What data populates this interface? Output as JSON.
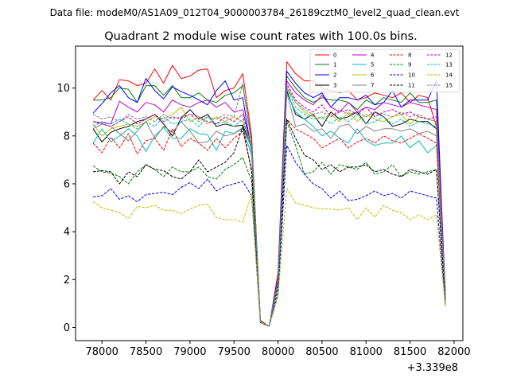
{
  "chart_data": {
    "type": "line",
    "suptitle": "Data file: modeM0/AS1A09_012T04_9000003784_26189cztM0_level2_quad_clean.evt",
    "title": "Quadrant 2 module wise count rates with 100.0s bins.",
    "xlabel": "",
    "ylabel": "",
    "x_offset_label": "+3.339e8",
    "xlim": [
      77700,
      82100
    ],
    "ylim": [
      -0.55,
      11.75
    ],
    "xticks": [
      78000,
      78500,
      79000,
      79500,
      80000,
      80500,
      81000,
      81500,
      82000
    ],
    "xtick_labels": [
      "78000",
      "78500",
      "79000",
      "79500",
      "80000",
      "80500",
      "81000",
      "81500",
      "82000"
    ],
    "yticks": [
      0,
      2,
      4,
      6,
      8,
      10
    ],
    "ytick_labels": [
      "0",
      "2",
      "4",
      "6",
      "8",
      "10"
    ],
    "legend_position": "top-right",
    "x": [
      77900,
      78000,
      78100,
      78200,
      78300,
      78400,
      78500,
      78600,
      78700,
      78800,
      78900,
      79000,
      79100,
      79200,
      79300,
      79400,
      79500,
      79600,
      79700,
      79800,
      79900,
      80000,
      80100,
      80200,
      80300,
      80400,
      80500,
      80600,
      80700,
      80800,
      80900,
      81000,
      81100,
      81200,
      81300,
      81400,
      81500,
      81600,
      81700,
      81800,
      81900
    ],
    "series": [
      {
        "name": "0",
        "color": "#ff0000",
        "dash": "solid",
        "values": [
          9.5,
          9.9,
          9.5,
          10.35,
          10.3,
          10.1,
          10.2,
          10.8,
          10.2,
          10.95,
          10.4,
          10.5,
          10.75,
          10.8,
          9.6,
          9.9,
          10.0,
          10.6,
          8.0,
          0.3,
          0.05,
          2.3,
          11.1,
          10.6,
          10.3,
          10.3,
          10.0,
          9.9,
          9.8,
          9.9,
          9.5,
          9.6,
          9.8,
          9.7,
          9.6,
          9.8,
          9.4,
          9.7,
          9.6,
          8.4,
          1.6
        ]
      },
      {
        "name": "1",
        "color": "#008000",
        "dash": "solid",
        "values": [
          9.5,
          9.5,
          9.6,
          10.0,
          9.95,
          9.4,
          10.1,
          10.1,
          9.7,
          10.1,
          9.6,
          9.6,
          9.8,
          9.5,
          9.4,
          9.7,
          9.8,
          10.1,
          7.8,
          0.25,
          0.05,
          2.0,
          10.5,
          10.0,
          9.6,
          9.4,
          9.6,
          9.5,
          9.5,
          9.4,
          9.1,
          9.5,
          9.3,
          9.6,
          9.5,
          9.4,
          9.8,
          9.4,
          9.4,
          9.5,
          1.5
        ]
      },
      {
        "name": "2",
        "color": "#0000ff",
        "dash": "solid",
        "values": [
          8.95,
          9.35,
          9.8,
          10.1,
          9.6,
          9.4,
          10.4,
          9.9,
          9.55,
          10.05,
          9.85,
          9.7,
          9.5,
          9.3,
          9.9,
          10.3,
          9.5,
          9.6,
          7.3,
          0.2,
          0.05,
          2.1,
          10.7,
          10.2,
          9.8,
          9.6,
          9.8,
          9.2,
          9.6,
          9.6,
          9.5,
          9.7,
          9.3,
          9.4,
          9.9,
          9.2,
          9.5,
          9.5,
          9.5,
          10.3,
          1.3
        ]
      },
      {
        "name": "3",
        "color": "#000000",
        "dash": "solid",
        "values": [
          8.3,
          7.75,
          8.15,
          8.3,
          8.4,
          8.6,
          8.7,
          8.9,
          8.5,
          8.0,
          8.75,
          9.1,
          8.7,
          8.9,
          8.4,
          8.5,
          8.4,
          8.45,
          7.5,
          0.25,
          0.05,
          1.9,
          9.9,
          8.9,
          8.7,
          8.9,
          8.4,
          9.0,
          8.7,
          8.8,
          9.0,
          8.5,
          9.0,
          8.8,
          8.4,
          8.5,
          8.7,
          8.6,
          8.6,
          8.3,
          1.2
        ]
      },
      {
        "name": "4",
        "color": "#bf00bf",
        "dash": "solid",
        "values": [
          8.6,
          8.55,
          8.5,
          9.45,
          9.2,
          9.0,
          9.4,
          9.3,
          9.0,
          9.5,
          9.3,
          9.2,
          9.4,
          9.5,
          9.2,
          9.4,
          9.0,
          9.1,
          7.4,
          0.25,
          0.05,
          2.0,
          10.3,
          9.8,
          9.5,
          9.3,
          9.7,
          9.2,
          9.0,
          9.4,
          9.0,
          9.2,
          9.1,
          9.4,
          9.3,
          9.2,
          9.4,
          9.3,
          9.2,
          9.1,
          1.4
        ]
      },
      {
        "name": "5",
        "color": "#00bfbf",
        "dash": "solid",
        "values": [
          7.7,
          8.3,
          7.75,
          8.0,
          8.3,
          8.0,
          7.35,
          8.0,
          8.35,
          7.9,
          7.9,
          8.3,
          8.1,
          8.05,
          7.4,
          8.2,
          8.1,
          8.3,
          7.2,
          0.25,
          0.05,
          1.8,
          9.8,
          9.0,
          8.7,
          8.4,
          8.0,
          8.2,
          7.9,
          7.7,
          8.3,
          7.8,
          7.6,
          7.7,
          7.7,
          8.0,
          7.5,
          7.8,
          7.3,
          7.6,
          1.3
        ]
      },
      {
        "name": "6",
        "color": "#bfbf00",
        "dash": "solid",
        "values": [
          8.5,
          8.0,
          8.3,
          8.4,
          8.5,
          8.4,
          8.6,
          8.8,
          8.7,
          8.9,
          9.2,
          8.6,
          8.8,
          8.5,
          8.8,
          8.6,
          8.8,
          8.6,
          7.6,
          0.25,
          0.05,
          1.9,
          10.0,
          9.4,
          9.0,
          8.8,
          8.7,
          8.9,
          8.6,
          9.0,
          8.6,
          8.9,
          8.7,
          8.6,
          8.8,
          8.9,
          8.5,
          8.8,
          8.7,
          8.6,
          1.3
        ]
      },
      {
        "name": "7",
        "color": "#808080",
        "dash": "solid",
        "values": [
          8.3,
          8.5,
          8.4,
          8.1,
          7.8,
          8.2,
          8.6,
          7.9,
          8.4,
          8.15,
          8.6,
          8.2,
          7.7,
          7.75,
          8.2,
          8.0,
          8.1,
          8.35,
          7.5,
          0.25,
          0.05,
          1.9,
          9.8,
          8.4,
          8.5,
          8.2,
          8.3,
          7.9,
          8.4,
          8.5,
          8.1,
          8.4,
          8.2,
          8.3,
          8.3,
          8.2,
          8.3,
          8.1,
          8.2,
          8.0,
          1.2
        ]
      },
      {
        "name": "8",
        "color": "#ff0000",
        "dash": "dashed",
        "values": [
          7.7,
          7.3,
          7.95,
          7.5,
          8.1,
          7.25,
          7.8,
          7.9,
          7.4,
          8.3,
          7.55,
          7.9,
          7.7,
          7.4,
          7.9,
          7.5,
          7.9,
          8.2,
          6.6,
          0.25,
          0.05,
          1.7,
          8.7,
          8.3,
          8.1,
          7.9,
          7.5,
          7.7,
          7.9,
          7.5,
          7.75,
          7.9,
          7.7,
          8.0,
          7.8,
          7.7,
          7.9,
          8.1,
          7.9,
          7.7,
          1.1
        ]
      },
      {
        "name": "9",
        "color": "#008000",
        "dash": "dashed",
        "values": [
          6.75,
          6.5,
          6.45,
          6.3,
          6.0,
          6.5,
          6.8,
          6.6,
          6.3,
          6.7,
          6.5,
          6.5,
          6.7,
          6.3,
          6.2,
          6.6,
          6.8,
          7.1,
          6.1,
          0.2,
          0.05,
          1.6,
          8.6,
          7.6,
          6.4,
          6.5,
          6.9,
          6.4,
          6.8,
          6.7,
          6.6,
          6.9,
          6.4,
          6.5,
          6.8,
          6.3,
          6.5,
          6.4,
          6.5,
          6.6,
          1.0
        ]
      },
      {
        "name": "10",
        "color": "#0000ff",
        "dash": "dashed",
        "values": [
          5.45,
          5.5,
          5.8,
          5.35,
          5.5,
          5.25,
          5.55,
          5.6,
          5.65,
          5.55,
          5.85,
          6.05,
          5.8,
          6.2,
          5.7,
          5.9,
          6.0,
          6.1,
          5.5,
          0.2,
          0.05,
          1.4,
          7.6,
          6.9,
          6.4,
          6.0,
          5.8,
          5.4,
          5.7,
          5.3,
          5.35,
          5.5,
          5.7,
          5.5,
          5.6,
          5.4,
          5.7,
          5.6,
          5.5,
          5.4,
          0.9
        ]
      },
      {
        "name": "11",
        "color": "#000000",
        "dash": "dashed",
        "values": [
          6.5,
          6.55,
          6.5,
          6.0,
          6.5,
          6.3,
          6.8,
          6.6,
          6.55,
          6.3,
          6.2,
          6.5,
          7.0,
          6.5,
          6.7,
          6.9,
          7.3,
          8.4,
          6.5,
          0.25,
          0.05,
          1.8,
          8.7,
          7.9,
          7.2,
          7.0,
          6.6,
          6.8,
          6.5,
          6.7,
          6.7,
          6.8,
          6.5,
          6.6,
          6.4,
          6.3,
          6.6,
          6.5,
          6.4,
          6.6,
          1.1
        ]
      },
      {
        "name": "12",
        "color": "#bf00bf",
        "dash": "dashed",
        "values": [
          8.6,
          8.5,
          8.4,
          8.6,
          8.8,
          8.5,
          8.7,
          8.9,
          8.6,
          8.8,
          8.7,
          8.9,
          8.8,
          8.6,
          8.5,
          8.8,
          8.6,
          8.9,
          7.5,
          0.25,
          0.05,
          1.9,
          10.2,
          9.5,
          9.2,
          9.0,
          9.3,
          8.8,
          9.0,
          9.1,
          8.9,
          9.2,
          8.8,
          9.0,
          9.1,
          8.9,
          9.0,
          8.8,
          8.7,
          8.8,
          1.3
        ]
      },
      {
        "name": "13",
        "color": "#00bfbf",
        "dash": "dashed",
        "values": [
          8.4,
          8.6,
          8.5,
          8.7,
          8.5,
          8.3,
          8.6,
          8.4,
          8.8,
          8.5,
          8.6,
          8.7,
          8.4,
          8.8,
          8.5,
          8.6,
          8.4,
          8.7,
          7.4,
          0.25,
          0.05,
          1.8,
          10.0,
          9.2,
          8.9,
          8.7,
          8.8,
          8.5,
          8.8,
          8.6,
          8.9,
          8.5,
          8.6,
          8.8,
          8.5,
          8.7,
          8.4,
          8.6,
          8.5,
          8.4,
          1.2
        ]
      },
      {
        "name": "14",
        "color": "#bfbf00",
        "dash": "dashed",
        "values": [
          5.25,
          5.0,
          4.9,
          4.8,
          4.55,
          5.05,
          5.0,
          5.1,
          4.9,
          4.9,
          4.75,
          4.95,
          5.1,
          5.15,
          4.6,
          4.5,
          4.5,
          4.4,
          5.55,
          0.2,
          0.05,
          1.3,
          5.8,
          5.2,
          5.1,
          5.0,
          4.95,
          4.95,
          4.9,
          5.0,
          4.5,
          5.0,
          4.6,
          5.1,
          4.9,
          4.8,
          4.5,
          4.7,
          4.5,
          4.7,
          0.9
        ]
      },
      {
        "name": "15",
        "color": "#808080",
        "dash": "dashed",
        "values": [
          8.9,
          8.7,
          8.8,
          8.6,
          8.9,
          8.7,
          8.8,
          8.6,
          8.9,
          8.7,
          8.8,
          8.9,
          8.6,
          8.8,
          8.7,
          8.9,
          8.8,
          10.2,
          7.6,
          0.25,
          0.05,
          2.0,
          10.1,
          9.4,
          9.1,
          8.9,
          9.0,
          8.8,
          9.1,
          8.9,
          9.0,
          8.8,
          9.0,
          8.9,
          8.8,
          9.0,
          8.8,
          8.9,
          8.7,
          8.6,
          1.0
        ]
      }
    ]
  }
}
